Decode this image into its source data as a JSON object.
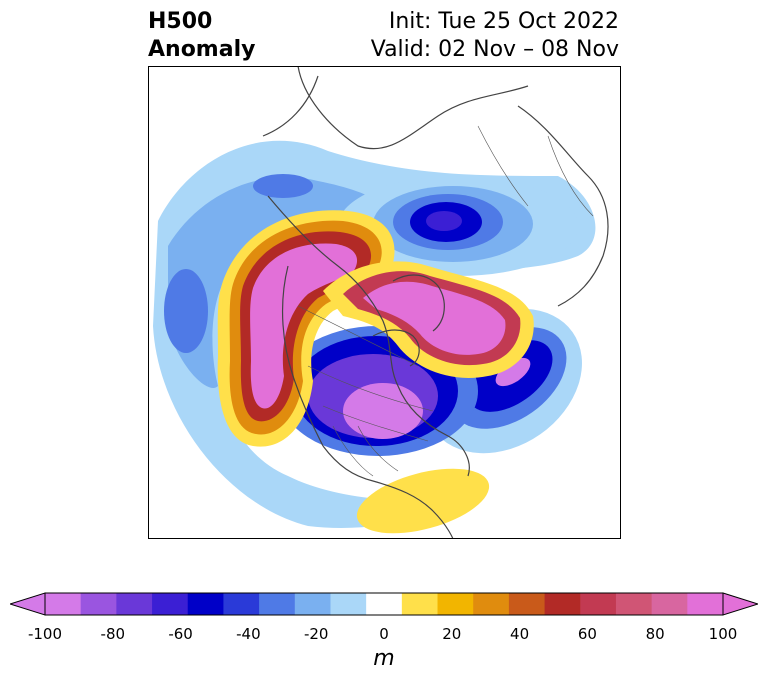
{
  "title": {
    "left_line1": "H500",
    "left_line2": "Anomaly",
    "right_line1": "Init: Tue 25 Oct 2022",
    "right_line2": "Valid: 02 Nov – 08 Nov"
  },
  "colorbar": {
    "unit": "m",
    "ticks": [
      "-100",
      "-80",
      "-60",
      "-40",
      "-20",
      "0",
      "20",
      "40",
      "60",
      "80",
      "100"
    ],
    "levels": [
      -100,
      -90,
      -80,
      -70,
      -60,
      -50,
      -40,
      -30,
      -20,
      -10,
      10,
      20,
      30,
      40,
      50,
      60,
      70,
      80,
      90,
      100
    ],
    "colors": [
      "#d47ae8",
      "#9a55e0",
      "#6a38d8",
      "#3b1fd4",
      "#0000c8",
      "#2a3ad8",
      "#4f7ae6",
      "#7ab0f0",
      "#aad7f8",
      "#ffffff",
      "#ffe04a",
      "#f2b500",
      "#e08c0e",
      "#c95a1a",
      "#b22a26",
      "#c23a52",
      "#d05575",
      "#d866a0",
      "#e270d8"
    ]
  },
  "map": {
    "projection": "north-polar-stereographic",
    "region": "North America / North Pacific / Arctic",
    "features": [
      {
        "type": "negative",
        "name": "north-pacific-low",
        "value": -30
      },
      {
        "type": "negative",
        "name": "siberia-low",
        "value": -65
      },
      {
        "type": "negative",
        "name": "north-america-trough",
        "value": -95
      },
      {
        "type": "negative",
        "name": "north-atlantic-low",
        "value": -85
      },
      {
        "type": "positive",
        "name": "western-ridge",
        "value": 100
      },
      {
        "type": "positive",
        "name": "arctic-greenland-ridge",
        "value": 95
      },
      {
        "type": "positive",
        "name": "southeast-us-ridge",
        "value": 15
      }
    ]
  }
}
